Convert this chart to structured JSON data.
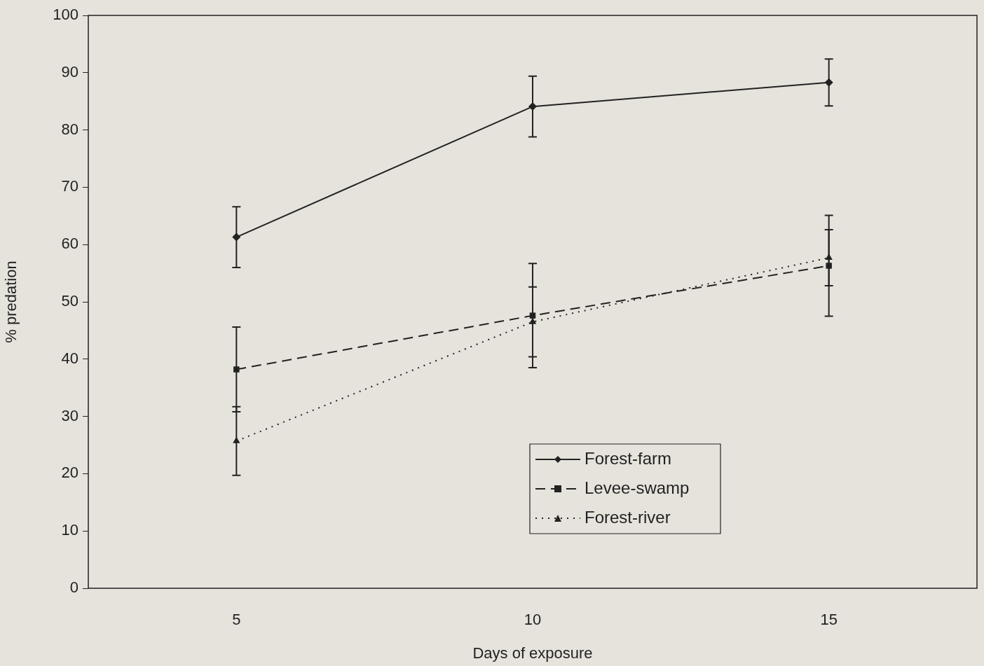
{
  "chart_data": {
    "type": "line",
    "xlabel": "Days of exposure",
    "ylabel": "% predation",
    "categories": [
      "5",
      "10",
      "15"
    ],
    "ylim": [
      0,
      100
    ],
    "yticks": [
      0,
      10,
      20,
      30,
      40,
      50,
      60,
      70,
      80,
      90,
      100
    ],
    "grid": false,
    "legend": "bottom right",
    "series": [
      {
        "name": "Forest-farm",
        "color": "#222222",
        "marker": "diamond",
        "line_style": "solid",
        "values": [
          61.3,
          84.1,
          88.3
        ],
        "errors": [
          5.3,
          5.3,
          4.1
        ]
      },
      {
        "name": "Levee-swamp",
        "color": "#222222",
        "marker": "square",
        "line_style": "dashed",
        "values": [
          38.2,
          47.6,
          56.3
        ],
        "errors": [
          7.4,
          9.1,
          8.8
        ]
      },
      {
        "name": "Forest-river",
        "color": "#222222",
        "marker": "triangle",
        "line_style": "dotted",
        "values": [
          25.7,
          46.5,
          57.7
        ],
        "errors": [
          6.0,
          6.1,
          4.9
        ]
      }
    ]
  }
}
